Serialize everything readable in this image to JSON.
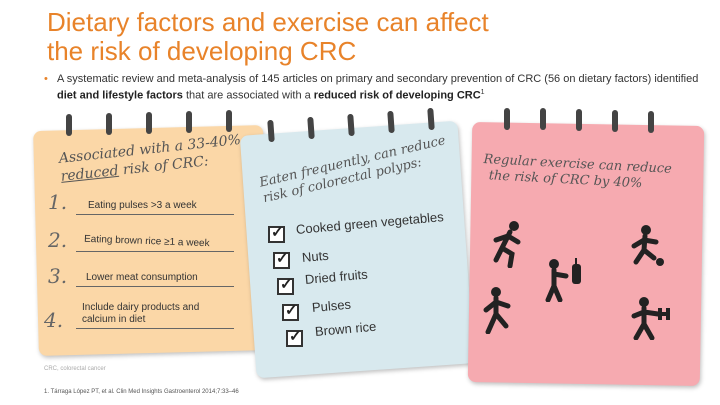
{
  "title_line1": "Dietary factors and exercise can affect",
  "title_line2": "the risk of developing CRC",
  "bullet": {
    "part1": "A systematic review and meta-analysis of 145 articles on primary and secondary prevention of CRC (56 on dietary factors) identified ",
    "bold1": "diet and lifestyle factors",
    "part2": " that are associated with a ",
    "bold2": "reduced risk of developing CRC",
    "sup": "1"
  },
  "card1": {
    "head_a": "Associated with a 33-40%",
    "head_reduced": "reduced",
    "head_b": " risk of CRC:",
    "items": [
      {
        "n": "1.",
        "text": "Eating pulses >3 a week"
      },
      {
        "n": "2.",
        "text": "Eating brown rice ≥1 a week"
      },
      {
        "n": "3.",
        "text": "Lower meat consumption"
      },
      {
        "n": "4.",
        "text": "Include dairy products and calcium in diet"
      }
    ]
  },
  "card2": {
    "head_line1": "Eaten frequently, can reduce",
    "head_line2": "risk of colorectal polyps:",
    "items": [
      "Cooked green vegetables",
      "Nuts",
      "Dried fruits",
      "Pulses",
      "Brown rice"
    ]
  },
  "card3": {
    "head_line1": "Regular exercise can reduce",
    "head_line2": "the risk of CRC by 40%"
  },
  "abbrev": "CRC, colorectal cancer",
  "reference": "1. Tárraga López PT, et al. Clin Med Insights Gastroenterol 2014;7:33–46",
  "colors": {
    "title": "#e8832a",
    "card1": "#fbd7a7",
    "card2": "#d8e9ee",
    "card3": "#f6aab0"
  },
  "icons": [
    "running-person-icon",
    "soccer-player-icon",
    "boxing-person-icon",
    "jogging-person-icon",
    "weightlifting-person-icon"
  ]
}
